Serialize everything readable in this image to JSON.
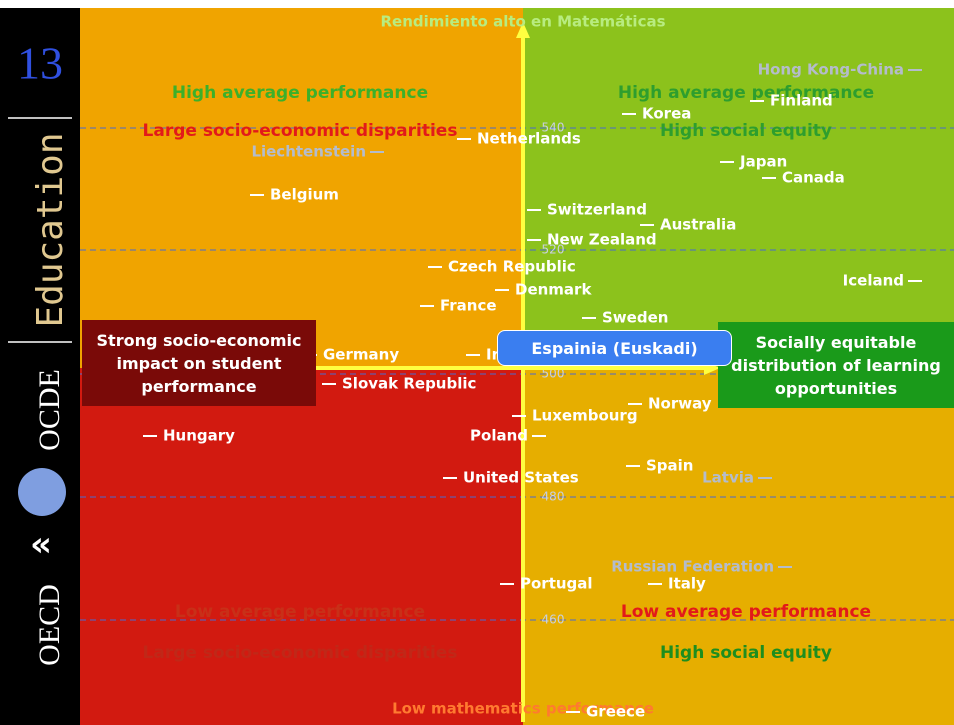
{
  "side": {
    "number": "13",
    "brand": "Education",
    "org1": "OCDE",
    "org2": "OECD"
  },
  "axis": {
    "top": "Rendimiento alto en Matemáticas",
    "bottom": "Low mathematics performance",
    "ticks": [
      540,
      520,
      500,
      480,
      460
    ]
  },
  "quadrants": {
    "top_left": [
      "High average performance",
      "Large socio-economic disparities"
    ],
    "top_right": [
      "High average performance",
      "High social equity"
    ],
    "bottom_left": [
      "Low average performance",
      "Large socio-economic disparities"
    ],
    "bottom_right": [
      "Low average performance",
      "High social equity"
    ]
  },
  "callouts": {
    "left": "Strong socio-economic impact on student performance",
    "right": "Socially equitable distribution of learning opportunities",
    "highlight": "Espainia (Euskadi)"
  },
  "countries": [
    "Hong Kong-China",
    "Finland",
    "Korea",
    "Netherlands",
    "Liechtenstein",
    "Japan",
    "Canada",
    "Belgium",
    "Switzerland",
    "Australia",
    "New Zealand",
    "Czech Republic",
    "Iceland",
    "Denmark",
    "France",
    "Sweden",
    "Germany",
    "Ireland",
    "Slovak Republic",
    "Norway",
    "Luxembourg",
    "Hungary",
    "Poland",
    "Spain",
    "Latvia",
    "United States",
    "Russian Federation",
    "Portugal",
    "Italy",
    "Greece"
  ]
}
